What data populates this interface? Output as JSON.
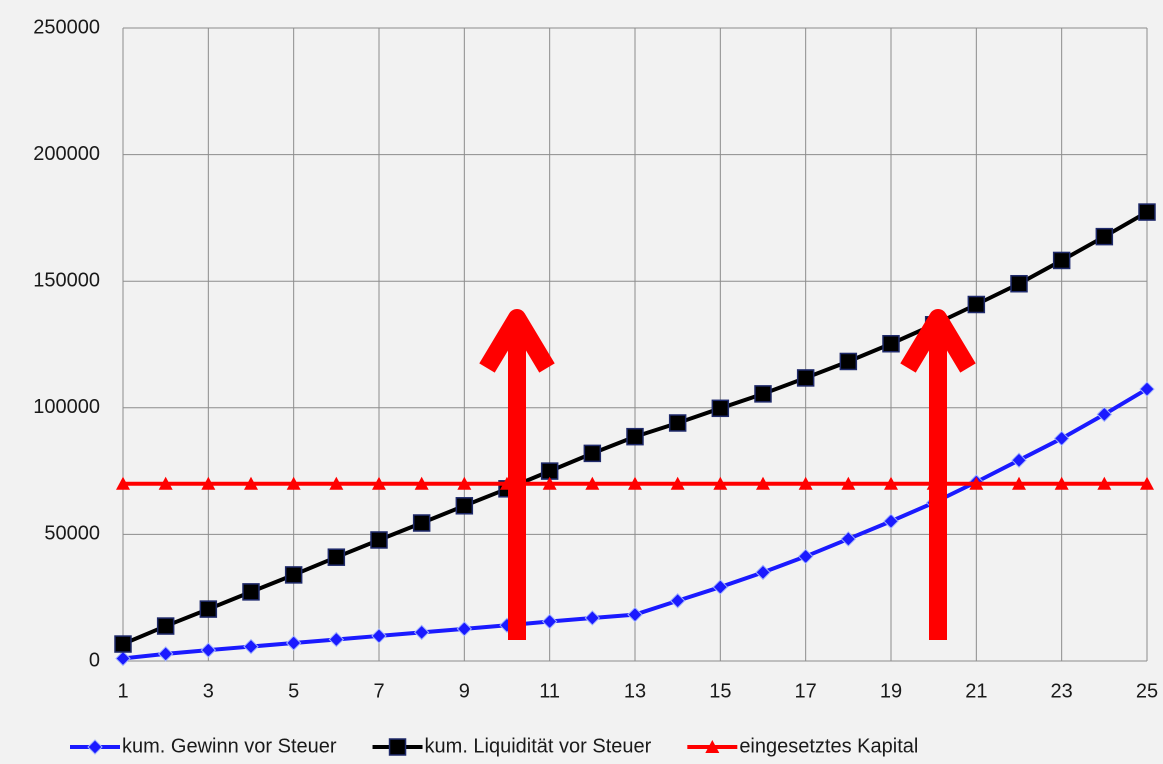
{
  "chart_data": {
    "type": "line",
    "categories": [
      1,
      null,
      3,
      null,
      5,
      null,
      7,
      null,
      9,
      null,
      11,
      null,
      13,
      null,
      15,
      null,
      17,
      null,
      19,
      null,
      21,
      null,
      23,
      null,
      25
    ],
    "series": [
      {
        "name": "kum. Gewinn vor Steuer",
        "color": "#1a1aff",
        "marker": "diamond",
        "values": [
          1000,
          2800,
          4300,
          5700,
          7100,
          8500,
          9900,
          11300,
          12700,
          14100,
          15600,
          17000,
          18300,
          23800,
          29200,
          35000,
          41300,
          48200,
          55200,
          62500,
          70700,
          79300,
          87900,
          97400,
          107400
        ]
      },
      {
        "name": "kum. Liquidität vor Steuer",
        "color": "#000000",
        "marker": "square",
        "values": [
          6700,
          13800,
          20500,
          27300,
          34000,
          41000,
          47800,
          54500,
          61300,
          68000,
          75000,
          82000,
          88600,
          94000,
          99800,
          105500,
          111800,
          118300,
          125300,
          132800,
          140800,
          149000,
          158200,
          167600,
          177300
        ]
      },
      {
        "name": "eingesetztes Kapital",
        "color": "#ff0000",
        "marker": "triangle",
        "values": [
          70000,
          70000,
          70000,
          70000,
          70000,
          70000,
          70000,
          70000,
          70000,
          70000,
          70000,
          70000,
          70000,
          70000,
          70000,
          70000,
          70000,
          70000,
          70000,
          70000,
          70000,
          70000,
          70000,
          70000,
          70000
        ]
      }
    ],
    "ylim": [
      0,
      250000
    ],
    "yticks": [
      0,
      50000,
      100000,
      150000,
      200000,
      250000
    ],
    "grid": true,
    "legend": "bottom"
  }
}
